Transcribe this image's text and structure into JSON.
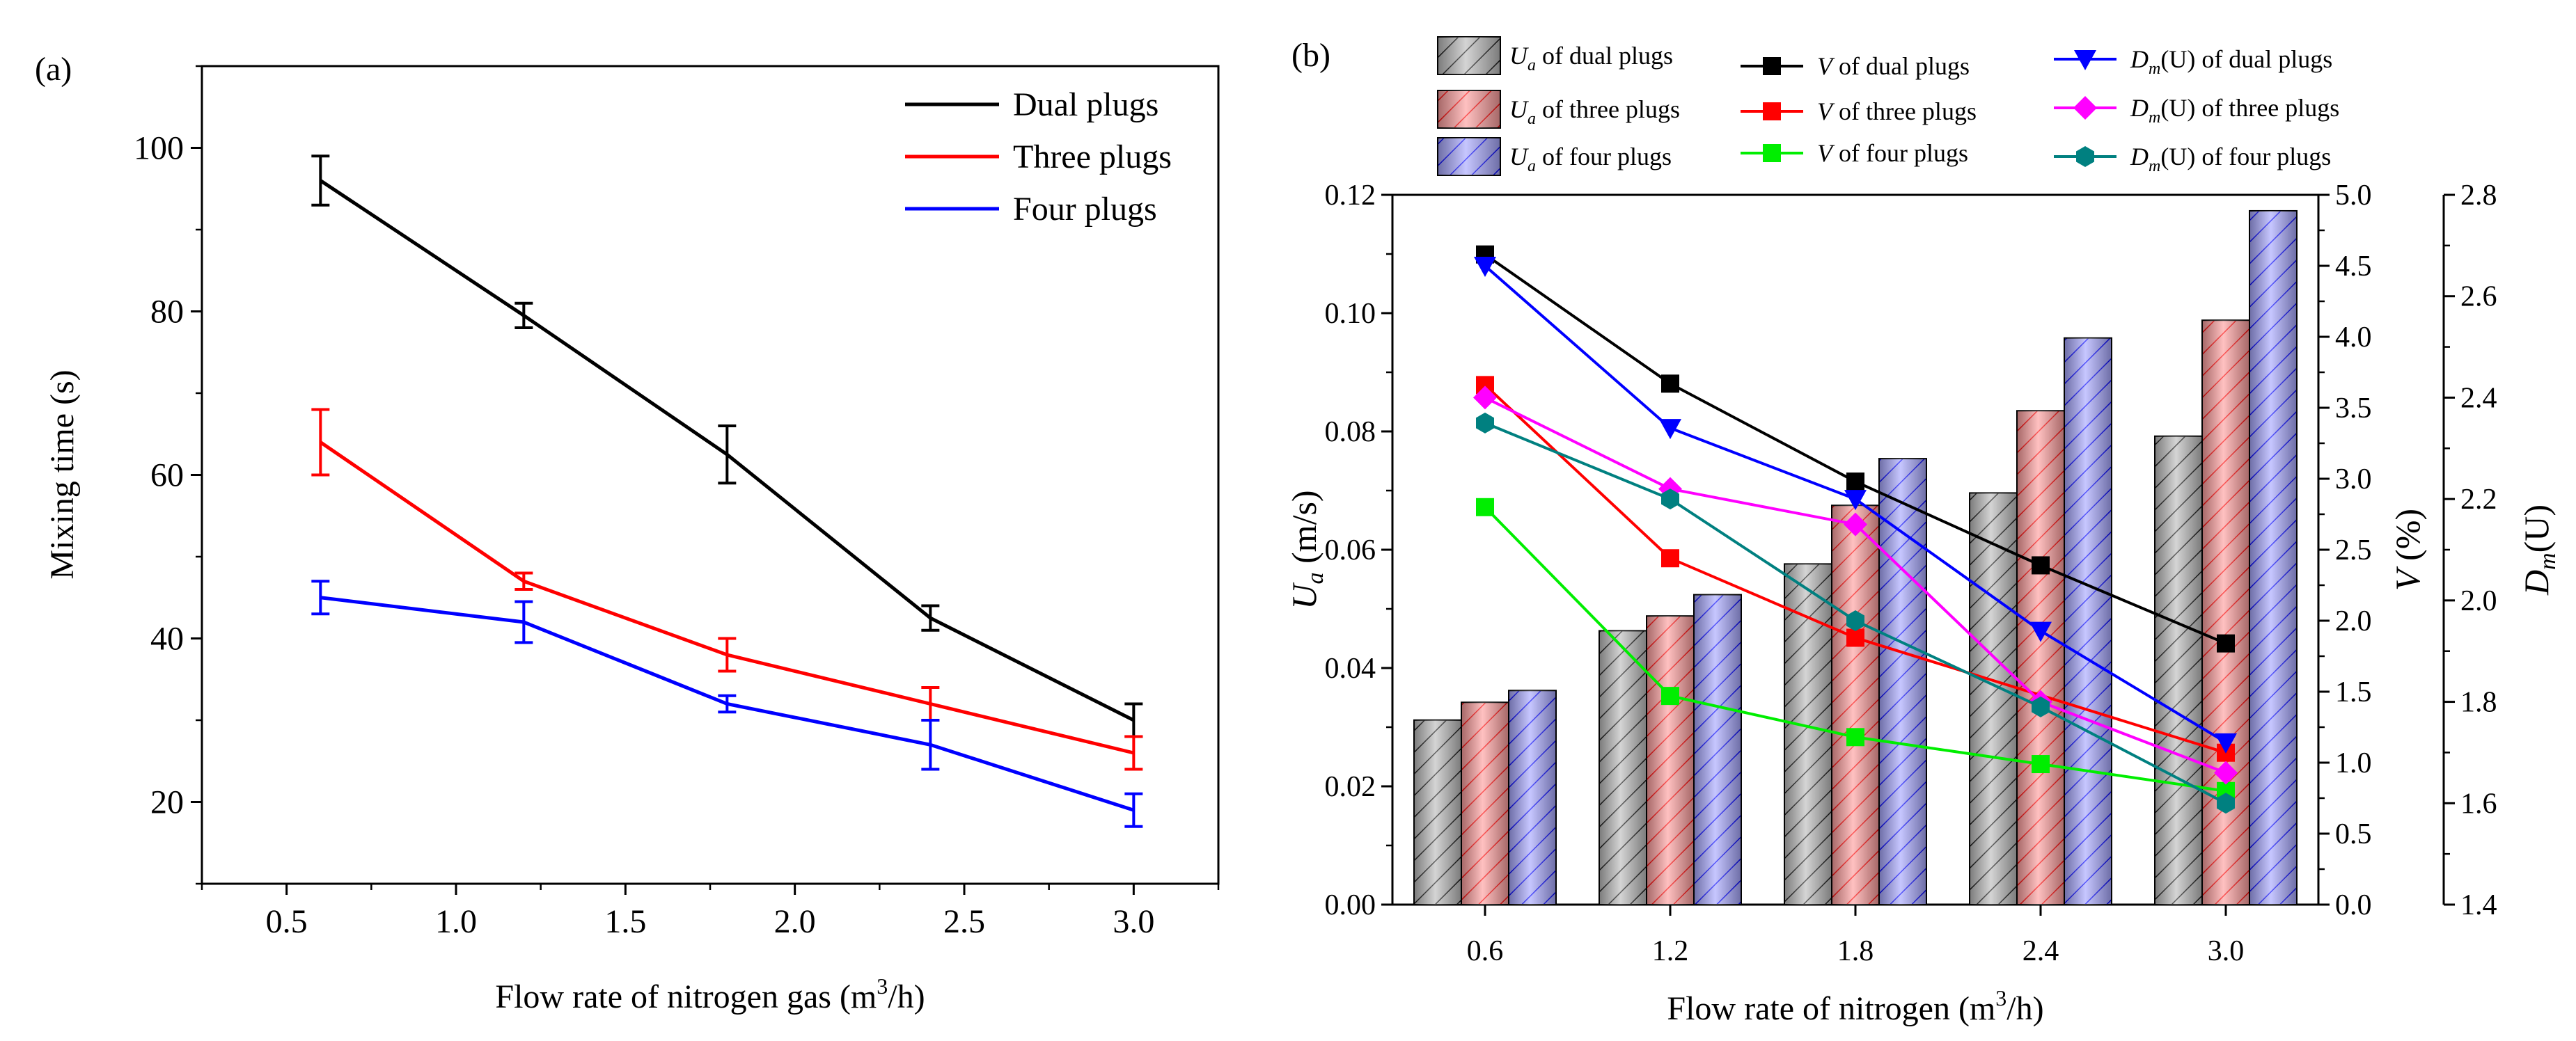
{
  "chart_data": [
    {
      "type": "line",
      "panel_label": "(a)",
      "xlabel_main": "Flow rate of nitrogen gas (m",
      "xlabel_sup": "3",
      "xlabel_tail": "/h)",
      "ylabel": "Mixing time (s)",
      "xlim": [
        0.25,
        3.25
      ],
      "ylim": [
        10,
        110
      ],
      "xticks": [
        "0.5",
        "1.0",
        "1.5",
        "2.0",
        "2.5",
        "3.0"
      ],
      "yticks": [
        "20",
        "40",
        "60",
        "80",
        "100"
      ],
      "x": [
        0.6,
        1.2,
        1.8,
        2.4,
        3.0
      ],
      "series": [
        {
          "name": "Dual plugs",
          "color": "#000000",
          "values": [
            96,
            79.5,
            62.5,
            42.5,
            30
          ],
          "err": [
            3,
            1.5,
            3.5,
            1.5,
            2
          ]
        },
        {
          "name": "Three plugs",
          "color": "#ff0000",
          "values": [
            64,
            47,
            38,
            32,
            26
          ],
          "err": [
            4,
            1,
            2,
            2,
            2
          ]
        },
        {
          "name": "Four plugs",
          "color": "#0000ff",
          "values": [
            45,
            42,
            32,
            27,
            19
          ],
          "err": [
            2,
            2.5,
            1,
            3,
            2
          ]
        }
      ],
      "legend_position": "top-right"
    },
    {
      "type": "bar",
      "panel_label": "(b)",
      "xlabel_main": "Flow rate of nitrogen (m",
      "xlabel_sup": "3",
      "xlabel_tail": "/h)",
      "categories": [
        "0.6",
        "1.2",
        "1.8",
        "2.4",
        "3.0"
      ],
      "left_axis": {
        "label_main": "U",
        "label_sub": "a",
        "label_tail": " (m/s)",
        "ylim": [
          0,
          0.12
        ],
        "ticks": [
          "0.00",
          "0.02",
          "0.04",
          "0.06",
          "0.08",
          "0.10",
          "0.12"
        ]
      },
      "mid_axis": {
        "label_main": "V",
        "label_tail": " (%)",
        "ylim": [
          0,
          5
        ],
        "ticks": [
          "0.0",
          "0.5",
          "1.0",
          "1.5",
          "2.0",
          "2.5",
          "3.0",
          "3.5",
          "4.0",
          "4.5",
          "5.0"
        ]
      },
      "right_axis": {
        "label_main": "D",
        "label_sub": "m",
        "label_tail": "(U)",
        "ylim": [
          1.4,
          2.8
        ],
        "ticks": [
          "1.4",
          "1.6",
          "1.8",
          "2.0",
          "2.2",
          "2.4",
          "2.6",
          "2.8"
        ]
      },
      "bar_series": [
        {
          "name": "dual plugs",
          "legend_label": "of dual plugs",
          "color": "#333333",
          "values": [
            0.0312,
            0.0463,
            0.0576,
            0.0696,
            0.0792
          ]
        },
        {
          "name": "three plugs",
          "legend_label": "of three plugs",
          "color": "#ff3b3b",
          "values": [
            0.0342,
            0.0488,
            0.0675,
            0.0835,
            0.0988
          ]
        },
        {
          "name": "four plugs",
          "legend_label": "of four plugs",
          "color": "#4040ff",
          "values": [
            0.0362,
            0.0524,
            0.0754,
            0.0958,
            0.1173
          ]
        }
      ],
      "v_series": [
        {
          "name": "V of dual plugs",
          "legend_label": "of dual  plugs",
          "color": "#000000",
          "marker": "square",
          "values": [
            4.58,
            3.67,
            2.98,
            2.39,
            1.84
          ]
        },
        {
          "name": "V of three plugs",
          "legend_label": "of three  plugs",
          "color": "#ff0000",
          "marker": "square",
          "values": [
            3.66,
            2.44,
            1.88,
            null,
            1.07
          ]
        },
        {
          "name": "V of four plugs",
          "legend_label": "of four  plugs",
          "color": "#00ee00",
          "marker": "square",
          "values": [
            2.8,
            1.47,
            1.18,
            0.99,
            0.8
          ]
        }
      ],
      "d_series": [
        {
          "name": "Dm(U) of dual plugs",
          "legend_label": "of dual  plugs",
          "color": "#0000ff",
          "marker": "triangle-down",
          "values": [
            2.66,
            2.34,
            2.2,
            1.94,
            1.72
          ]
        },
        {
          "name": "Dm(U) of three plugs",
          "legend_label": "of three  plugs",
          "color": "#ff00ff",
          "marker": "diamond",
          "values": [
            2.4,
            2.22,
            2.15,
            1.8,
            1.66
          ]
        },
        {
          "name": "Dm(U) of four plugs",
          "legend_label": "of four  plugs",
          "color": "#008080",
          "marker": "hexagon",
          "values": [
            2.35,
            2.2,
            1.96,
            1.79,
            1.6
          ]
        }
      ]
    }
  ]
}
